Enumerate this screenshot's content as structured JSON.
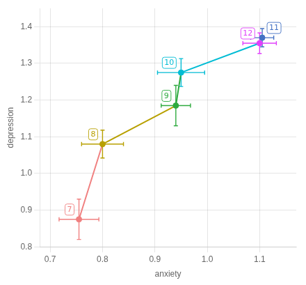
{
  "chart_data": {
    "type": "scatter",
    "xlabel": "anxiety",
    "ylabel": "depression",
    "annotations": [
      "7",
      "8",
      "9",
      "10",
      "11",
      "12"
    ],
    "x": [
      0.755,
      0.8,
      0.94,
      0.95,
      1.105,
      1.1
    ],
    "values": [
      0.875,
      1.08,
      1.185,
      1.275,
      1.37,
      1.355
    ],
    "x_error": [
      0.038,
      0.04,
      0.028,
      0.045,
      0.022,
      0.032
    ],
    "y_error": [
      0.055,
      0.038,
      0.055,
      0.038,
      0.025,
      0.028
    ],
    "colors": [
      "#F08080",
      "#B8A000",
      "#2EAA3F",
      "#00BCD4",
      "#4472C4",
      "#E040FB"
    ],
    "segments": [
      {
        "from": 0,
        "to": 1,
        "color": "#F08080"
      },
      {
        "from": 1,
        "to": 2,
        "color": "#B8A000"
      },
      {
        "from": 2,
        "to": 3,
        "color": "#2EAA3F"
      },
      {
        "from": 3,
        "to": 5,
        "color": "#00BCD4"
      }
    ],
    "xlim": [
      0.68,
      1.17
    ],
    "ylim": [
      0.8,
      1.45
    ],
    "xticks": [
      0.7,
      0.8,
      0.9,
      {
        "value": 1.0,
        "label": "1.0"
      },
      1.1
    ],
    "yticks": [
      0.8,
      0.9,
      {
        "value": 1.0,
        "label": "1.0"
      },
      1.1,
      1.2,
      1.3,
      1.4
    ],
    "grid": true
  }
}
